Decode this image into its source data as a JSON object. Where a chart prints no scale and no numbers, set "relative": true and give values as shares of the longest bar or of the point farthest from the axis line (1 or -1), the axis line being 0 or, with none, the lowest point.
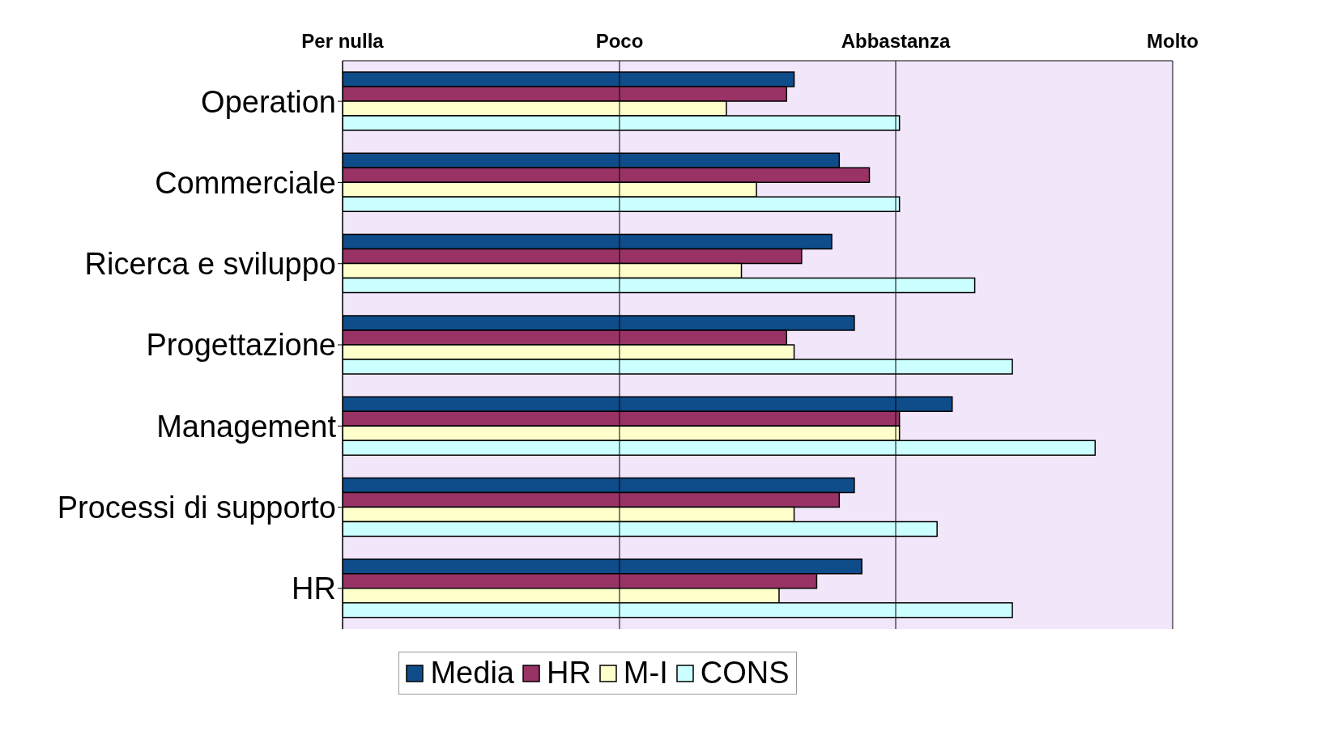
{
  "chart_data": {
    "type": "bar",
    "orientation": "horizontal",
    "relative": true,
    "categories": [
      "Operation",
      "Commerciale",
      "Ricerca e sviluppo",
      "Progettazione",
      "Management",
      "Processi di supporto",
      "HR"
    ],
    "series": [
      {
        "name": "Media",
        "color": "#0f4c8a",
        "values": [
          0.6,
          0.66,
          0.65,
          0.68,
          0.81,
          0.68,
          0.69
        ]
      },
      {
        "name": "HR",
        "color": "#993366",
        "values": [
          0.59,
          0.7,
          0.61,
          0.59,
          0.74,
          0.66,
          0.63
        ]
      },
      {
        "name": "M-I",
        "color": "#ffffcc",
        "values": [
          0.51,
          0.55,
          0.53,
          0.6,
          0.74,
          0.6,
          0.58
        ]
      },
      {
        "name": "CONS",
        "color": "#ccffff",
        "values": [
          0.74,
          0.74,
          0.84,
          0.89,
          1,
          0.79,
          0.89
        ]
      }
    ],
    "ref_lines": [
      {
        "axis": "x",
        "value": 0,
        "label": "Per nulla",
        "color": "#000000"
      },
      {
        "axis": "x",
        "value": 0.368,
        "label": "Poco",
        "color": "#000000"
      },
      {
        "axis": "x",
        "value": 0.735,
        "label": "Abbastanza",
        "color": "#000000"
      },
      {
        "axis": "x",
        "value": 1.103,
        "label": "Molto",
        "color": "#000000"
      }
    ],
    "legend": "bottom"
  }
}
